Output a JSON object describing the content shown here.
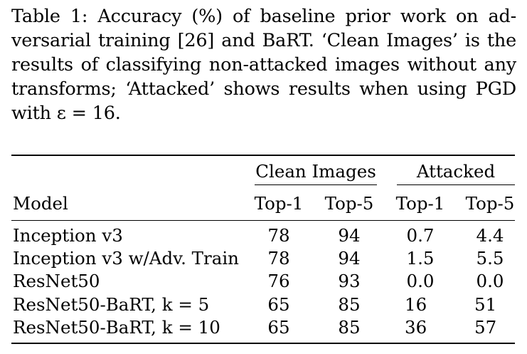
{
  "caption": {
    "lines": [
      "Table 1: Accuracy (%) of baseline prior work on ad-",
      "versarial training [26] and BaRT. ‘Clean Images’ is the",
      "results of classifying non-attacked images without any",
      "transforms; ‘Attacked’ shows results when using PGD",
      "with ε = 16."
    ]
  },
  "table": {
    "group_headers": [
      "Clean Images",
      "Attacked"
    ],
    "column_headers": [
      "Model",
      "Top-1",
      "Top-5",
      "Top-1",
      "Top-5"
    ],
    "rows": [
      {
        "model": "Inception v3",
        "clean_top1": "78",
        "clean_top5": "94",
        "att_top1": "0.7",
        "att_top5": "4.4"
      },
      {
        "model": "Inception v3 w/Adv. Train",
        "clean_top1": "78",
        "clean_top5": "94",
        "att_top1": "1.5",
        "att_top5": "5.5"
      },
      {
        "model": "ResNet50",
        "clean_top1": "76",
        "clean_top5": "93",
        "att_top1": "0.0",
        "att_top5": "0.0"
      },
      {
        "model": "ResNet50-BaRT, k = 5",
        "clean_top1": "65",
        "clean_top5": "85",
        "att_top1": "16",
        "att_top5": "51"
      },
      {
        "model": "ResNet50-BaRT, k = 10",
        "clean_top1": "65",
        "clean_top5": "85",
        "att_top1": "36",
        "att_top5": "57"
      }
    ]
  }
}
